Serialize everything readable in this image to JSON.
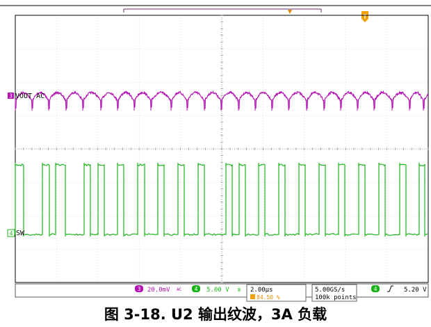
{
  "chart_data": {
    "type": "line",
    "title": "",
    "xlabel": "",
    "ylabel": "",
    "grid": true,
    "x_divisions": 10,
    "y_divisions": 8,
    "trigger_marker": "T",
    "series": [
      {
        "name": "VOUT AC",
        "channel": "3",
        "color": "#b40fb4",
        "kind": "ripple",
        "scale": "20.0mV",
        "coupling": "AC",
        "pulses": [
          22,
          46,
          70,
          95,
          119,
          145,
          169,
          193,
          217,
          246,
          269,
          294,
          318,
          343,
          367,
          391,
          415,
          441,
          466,
          490,
          514,
          538,
          564,
          589,
          609
        ]
      },
      {
        "name": "SW",
        "channel": "4",
        "color": "#19b419",
        "kind": "square",
        "scale": "5.00 V",
        "pulses": [
          [
            22,
            34
          ],
          [
            61,
            71
          ],
          [
            80,
            94
          ],
          [
            121,
            130
          ],
          [
            141,
            150
          ],
          [
            169,
            178
          ],
          [
            198,
            208
          ],
          [
            227,
            236
          ],
          [
            256,
            265
          ],
          [
            285,
            294
          ],
          [
            325,
            334
          ],
          [
            344,
            353
          ],
          [
            372,
            381
          ],
          [
            401,
            410
          ],
          [
            430,
            439
          ],
          [
            459,
            468
          ],
          [
            487,
            496
          ],
          [
            516,
            525
          ],
          [
            545,
            554
          ],
          [
            575,
            584
          ],
          [
            603,
            611
          ]
        ]
      }
    ]
  },
  "status_bar": {
    "ch3_num": "3",
    "ch3_scale": "20.0mV",
    "ch3_coupling": "AC",
    "ch4_num": "4",
    "ch4_scale": "5.00 V",
    "bw_symbol": "B",
    "timebase": "2.00µs",
    "trigger_pos": "84.50 %",
    "sample_rate": "5.00GS/s",
    "record_length": "100k points",
    "trig_ch": "4",
    "trig_slope": "rising",
    "trig_level": "5.20 V"
  },
  "caption": "图 3-18. U2 输出纹波，3A 负载"
}
